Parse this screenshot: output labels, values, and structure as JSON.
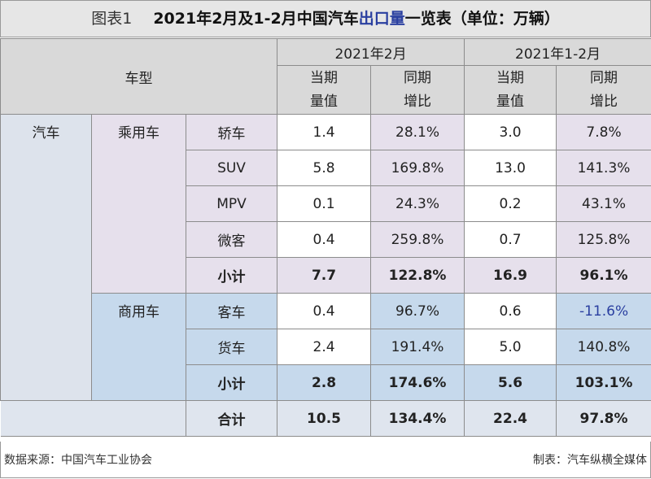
{
  "title": {
    "prefix": "图表1",
    "part1": "2021年2月及1-2月中国汽车",
    "highlight": "出口量",
    "part2": "一览表（单位：万辆）"
  },
  "header": {
    "type": "车型",
    "period1": "2021年2月",
    "period2": "2021年1-2月",
    "cur": "当期\n量值",
    "yoy": "同期\n增比"
  },
  "category": "汽车",
  "passenger": {
    "label": "乘用车",
    "rows": [
      {
        "model": "轿车",
        "v1": "1.4",
        "p1": "28.1%",
        "v2": "3.0",
        "p2": "7.8%"
      },
      {
        "model": "SUV",
        "v1": "5.8",
        "p1": "169.8%",
        "v2": "13.0",
        "p2": "141.3%"
      },
      {
        "model": "MPV",
        "v1": "0.1",
        "p1": "24.3%",
        "v2": "0.2",
        "p2": "43.1%"
      },
      {
        "model": "微客",
        "v1": "0.4",
        "p1": "259.8%",
        "v2": "0.7",
        "p2": "125.8%"
      }
    ],
    "subtotal": {
      "model": "小计",
      "v1": "7.7",
      "p1": "122.8%",
      "v2": "16.9",
      "p2": "96.1%"
    }
  },
  "commercial": {
    "label": "商用车",
    "rows": [
      {
        "model": "客车",
        "v1": "0.4",
        "p1": "96.7%",
        "v2": "0.6",
        "p2": "-11.6%"
      },
      {
        "model": "货车",
        "v1": "2.4",
        "p1": "191.4%",
        "v2": "5.0",
        "p2": "140.8%"
      }
    ],
    "subtotal": {
      "model": "小计",
      "v1": "2.8",
      "p1": "174.6%",
      "v2": "5.6",
      "p2": "103.1%"
    }
  },
  "total": {
    "model": "合计",
    "v1": "10.5",
    "p1": "134.4%",
    "v2": "22.4",
    "p2": "97.8%"
  },
  "footer": {
    "source": "数据来源：中国汽车工业协会",
    "maker": "制表：汽车纵横全媒体"
  },
  "colors": {
    "passenger": "#e6e0ec",
    "commercial": "#c6d9ec",
    "header": "#d9d9d9",
    "highlight": "#2a3fa0"
  }
}
